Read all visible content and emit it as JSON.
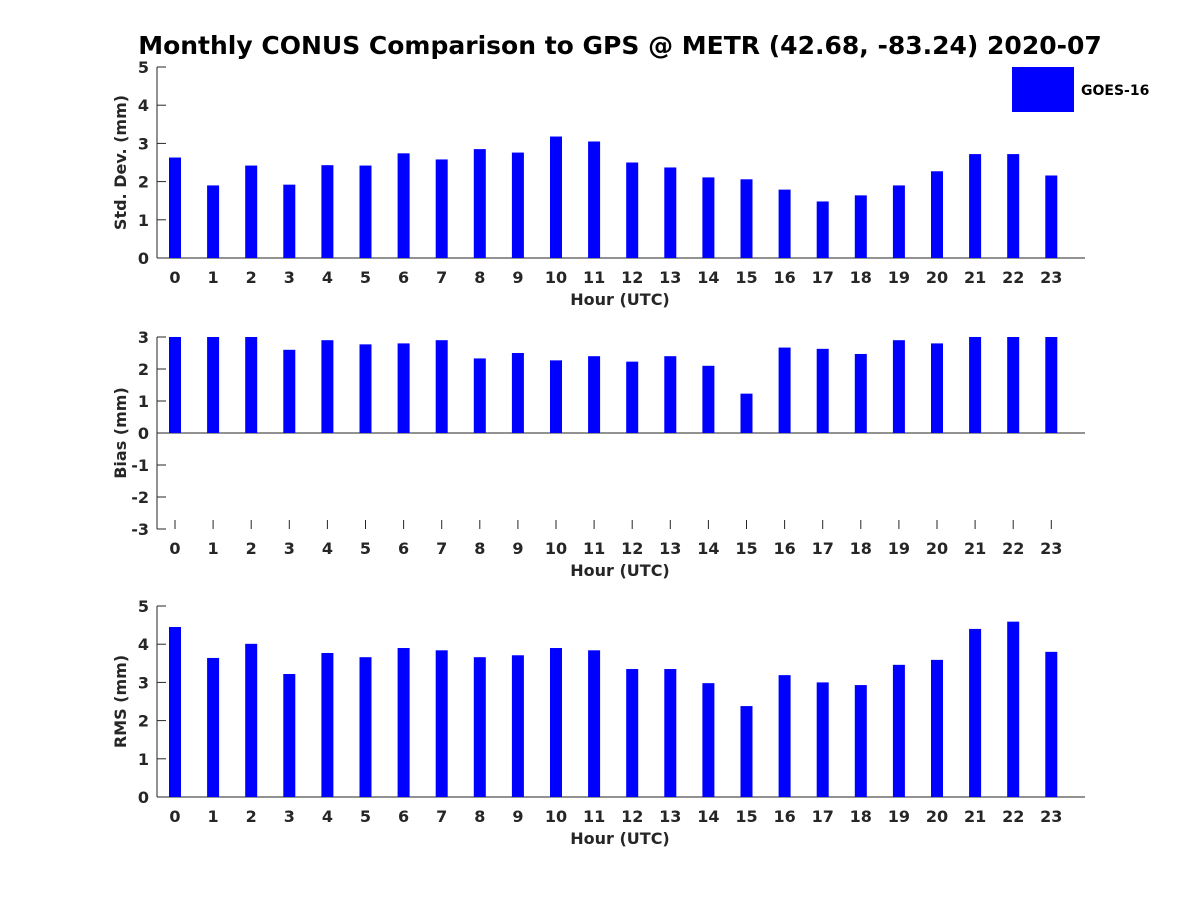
{
  "colors": {
    "bar": "#0000ff",
    "axis": "#262626",
    "background": "#ffffff"
  },
  "chart_data": {
    "type": "bar",
    "title": "Monthly CONUS Comparison to GPS @ METR (42.68, -83.24) 2020-07",
    "legend": {
      "entries": [
        "GOES-16"
      ],
      "placement": "top-right"
    },
    "categories": [
      "0",
      "1",
      "2",
      "3",
      "4",
      "5",
      "6",
      "7",
      "8",
      "9",
      "10",
      "11",
      "12",
      "13",
      "14",
      "15",
      "16",
      "17",
      "18",
      "19",
      "20",
      "21",
      "22",
      "23"
    ],
    "panels": [
      {
        "name": "std",
        "xlabel": "Hour (UTC)",
        "ylabel": "Std. Dev. (mm)",
        "ylim": [
          0,
          5
        ],
        "yticks": [
          0,
          1,
          2,
          3,
          4,
          5
        ],
        "series": [
          {
            "name": "GOES-16",
            "values": [
              2.63,
              1.9,
              2.42,
              1.92,
              2.43,
              2.42,
              2.74,
              2.58,
              2.85,
              2.76,
              3.18,
              3.05,
              2.5,
              2.37,
              2.11,
              2.06,
              1.79,
              1.48,
              1.64,
              1.9,
              2.27,
              2.72,
              2.72,
              2.16
            ]
          }
        ]
      },
      {
        "name": "bias",
        "xlabel": "Hour (UTC)",
        "ylabel": "Bias (mm)",
        "ylim": [
          -3,
          3
        ],
        "yticks": [
          -3,
          -2,
          -1,
          0,
          1,
          2,
          3
        ],
        "series": [
          {
            "name": "GOES-16",
            "values": [
              3.0,
              3.0,
              3.0,
              2.6,
              2.9,
              2.77,
              2.8,
              2.9,
              2.33,
              2.5,
              2.27,
              2.4,
              2.23,
              2.4,
              2.1,
              1.23,
              2.67,
              2.63,
              2.47,
              2.9,
              2.8,
              3.0,
              3.0,
              3.0
            ]
          }
        ]
      },
      {
        "name": "rms",
        "xlabel": "Hour (UTC)",
        "ylabel": "RMS (mm)",
        "ylim": [
          0,
          5
        ],
        "yticks": [
          0,
          1,
          2,
          3,
          4,
          5
        ],
        "series": [
          {
            "name": "GOES-16",
            "values": [
              4.45,
              3.64,
              4.01,
              3.22,
              3.77,
              3.66,
              3.9,
              3.84,
              3.66,
              3.71,
              3.9,
              3.84,
              3.35,
              3.35,
              2.98,
              2.38,
              3.19,
              3.0,
              2.93,
              3.46,
              3.59,
              4.4,
              4.59,
              3.8
            ]
          }
        ]
      }
    ]
  }
}
